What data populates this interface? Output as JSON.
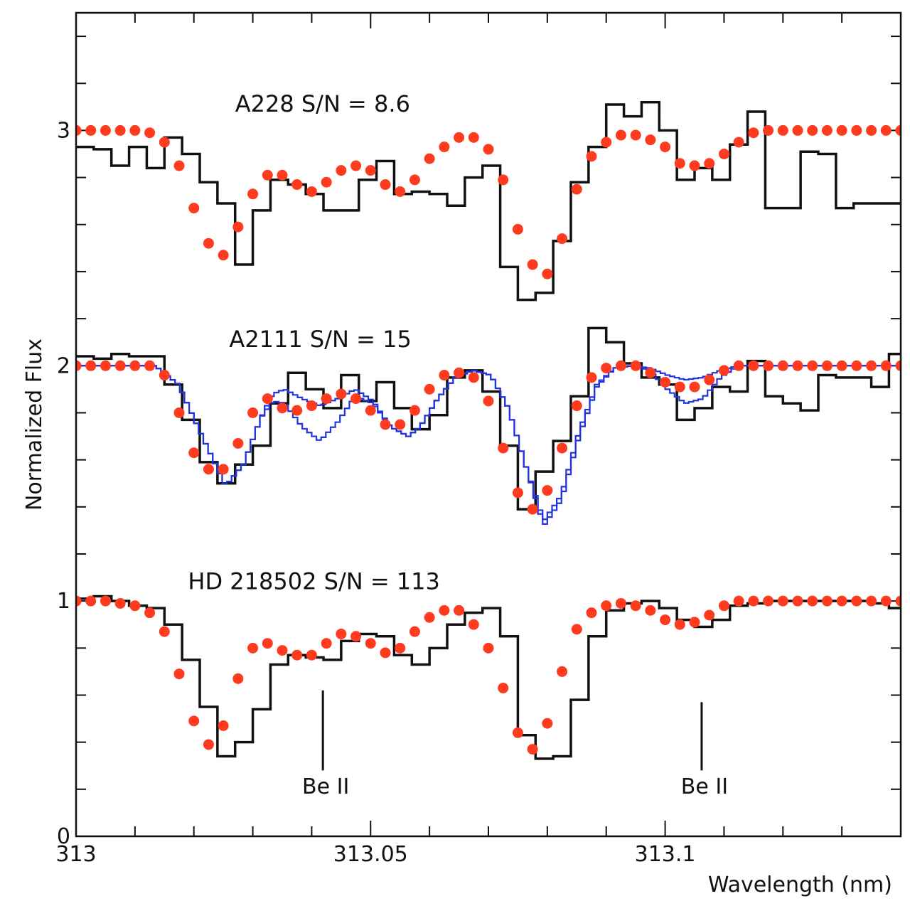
{
  "chart_data": {
    "type": "line",
    "xlabel": "Wavelength (nm)",
    "ylabel": "Normalized Flux",
    "xlim": [
      313.0,
      313.14
    ],
    "ylim": [
      0,
      3.5
    ],
    "x_ticks": [
      313,
      313.05,
      313.1
    ],
    "x_tick_labels": [
      "313",
      "313.05",
      "313.1"
    ],
    "x_minor_step": 0.01,
    "y_ticks": [
      0,
      1,
      2,
      3
    ],
    "y_tick_labels": [
      "0",
      "1",
      "2",
      "3"
    ],
    "y_minor_step": 0.2,
    "colors": {
      "observed": "#111111",
      "model_dots": "#ff3b1f",
      "model_blue": "#2233dd"
    },
    "panels": [
      {
        "label": "A228 S/N = 8.6",
        "label_pos": [
          313.027,
          3.08
        ],
        "observed_step": {
          "x": [
            313.0,
            313.003,
            313.006,
            313.009,
            313.012,
            313.015,
            313.018,
            313.021,
            313.024,
            313.027,
            313.03,
            313.033,
            313.036,
            313.039,
            313.042,
            313.045,
            313.048,
            313.051,
            313.054,
            313.057,
            313.06,
            313.063,
            313.066,
            313.069,
            313.072,
            313.075,
            313.078,
            313.081,
            313.084,
            313.087,
            313.09,
            313.093,
            313.096,
            313.099,
            313.102,
            313.105,
            313.108,
            313.111,
            313.114,
            313.117,
            313.12,
            313.123,
            313.126,
            313.129,
            313.132,
            313.135,
            313.138
          ],
          "y": [
            2.93,
            2.92,
            2.85,
            2.93,
            2.84,
            2.97,
            2.9,
            2.78,
            2.69,
            2.43,
            2.66,
            2.79,
            2.77,
            2.73,
            2.66,
            2.66,
            2.79,
            2.87,
            2.73,
            2.74,
            2.73,
            2.68,
            2.8,
            2.85,
            2.42,
            2.28,
            2.31,
            2.53,
            2.78,
            2.93,
            3.11,
            3.06,
            3.12,
            3.0,
            2.79,
            2.84,
            2.79,
            2.94,
            3.08,
            2.67,
            2.67,
            2.91,
            2.9,
            2.67,
            2.69,
            2.69,
            2.69
          ]
        },
        "model_dots": {
          "x": [
            313.0,
            313.0025,
            313.005,
            313.0075,
            313.01,
            313.0125,
            313.015,
            313.0175,
            313.02,
            313.0225,
            313.025,
            313.0275,
            313.03,
            313.0325,
            313.035,
            313.0375,
            313.04,
            313.0425,
            313.045,
            313.0475,
            313.05,
            313.0525,
            313.055,
            313.0575,
            313.06,
            313.0625,
            313.065,
            313.0675,
            313.07,
            313.0725,
            313.075,
            313.0775,
            313.08,
            313.0825,
            313.085,
            313.0875,
            313.09,
            313.0925,
            313.095,
            313.0975,
            313.1,
            313.1025,
            313.105,
            313.1075,
            313.11,
            313.1125,
            313.115,
            313.1175,
            313.12,
            313.1225,
            313.125,
            313.1275,
            313.13,
            313.1325,
            313.135,
            313.1375,
            313.14
          ],
          "y": [
            3.0,
            3.0,
            3.0,
            3.0,
            3.0,
            2.99,
            2.95,
            2.85,
            2.67,
            2.52,
            2.47,
            2.59,
            2.73,
            2.81,
            2.81,
            2.77,
            2.74,
            2.78,
            2.83,
            2.85,
            2.83,
            2.77,
            2.74,
            2.79,
            2.88,
            2.93,
            2.97,
            2.97,
            2.92,
            2.79,
            2.58,
            2.43,
            2.39,
            2.54,
            2.75,
            2.89,
            2.95,
            2.98,
            2.98,
            2.96,
            2.93,
            2.86,
            2.85,
            2.86,
            2.9,
            2.95,
            2.99,
            3.0,
            3.0,
            3.0,
            3.0,
            3.0,
            3.0,
            3.0,
            3.0,
            3.0,
            3.0
          ]
        }
      },
      {
        "label": "A2111 S/N = 15",
        "label_pos": [
          313.026,
          2.08
        ],
        "observed_step": {
          "x": [
            313.0,
            313.003,
            313.006,
            313.009,
            313.012,
            313.015,
            313.018,
            313.021,
            313.024,
            313.027,
            313.03,
            313.033,
            313.036,
            313.039,
            313.042,
            313.045,
            313.048,
            313.051,
            313.054,
            313.057,
            313.06,
            313.063,
            313.066,
            313.069,
            313.072,
            313.075,
            313.078,
            313.081,
            313.084,
            313.087,
            313.09,
            313.093,
            313.096,
            313.099,
            313.102,
            313.105,
            313.108,
            313.111,
            313.114,
            313.117,
            313.12,
            313.123,
            313.126,
            313.129,
            313.132,
            313.135,
            313.138
          ],
          "y": [
            2.04,
            2.03,
            2.05,
            2.04,
            2.04,
            1.92,
            1.77,
            1.59,
            1.5,
            1.58,
            1.66,
            1.84,
            1.97,
            1.9,
            1.82,
            1.96,
            1.85,
            1.93,
            1.82,
            1.73,
            1.79,
            1.95,
            1.98,
            1.89,
            1.66,
            1.39,
            1.55,
            1.68,
            1.87,
            2.16,
            2.1,
            2.01,
            1.95,
            1.92,
            1.77,
            1.82,
            1.91,
            1.89,
            2.02,
            1.87,
            1.84,
            1.81,
            1.96,
            1.95,
            1.95,
            1.91,
            2.05
          ]
        },
        "model_dots": {
          "x": [
            313.0,
            313.0025,
            313.005,
            313.0075,
            313.01,
            313.0125,
            313.015,
            313.0175,
            313.02,
            313.0225,
            313.025,
            313.0275,
            313.03,
            313.0325,
            313.035,
            313.0375,
            313.04,
            313.0425,
            313.045,
            313.0475,
            313.05,
            313.0525,
            313.055,
            313.0575,
            313.06,
            313.0625,
            313.065,
            313.0675,
            313.07,
            313.0725,
            313.075,
            313.0775,
            313.08,
            313.0825,
            313.085,
            313.0875,
            313.09,
            313.0925,
            313.095,
            313.0975,
            313.1,
            313.1025,
            313.105,
            313.1075,
            313.11,
            313.1125,
            313.115,
            313.1175,
            313.12,
            313.1225,
            313.125,
            313.1275,
            313.13,
            313.1325,
            313.135,
            313.1375,
            313.14
          ],
          "y": [
            2.0,
            2.0,
            2.0,
            2.0,
            2.0,
            2.0,
            1.96,
            1.8,
            1.63,
            1.56,
            1.56,
            1.67,
            1.8,
            1.86,
            1.82,
            1.81,
            1.83,
            1.86,
            1.88,
            1.86,
            1.81,
            1.75,
            1.75,
            1.81,
            1.9,
            1.96,
            1.97,
            1.95,
            1.85,
            1.65,
            1.46,
            1.39,
            1.47,
            1.65,
            1.83,
            1.95,
            1.99,
            2.0,
            2.0,
            1.97,
            1.93,
            1.91,
            1.91,
            1.94,
            1.98,
            2.0,
            2.0,
            2.0,
            2.0,
            2.0,
            2.0,
            2.0,
            2.0,
            2.0,
            2.0,
            2.0,
            2.0
          ]
        },
        "model_blue": [
          {
            "x": [
              313.0,
              313.013,
              313.017,
              313.021,
              313.025,
              313.028,
              313.031,
              313.033,
              313.035,
              313.038,
              313.041,
              313.044,
              313.047,
              313.05,
              313.053,
              313.056,
              313.058,
              313.061,
              313.064,
              313.067,
              313.07,
              313.073,
              313.076,
              313.079,
              313.082,
              313.085,
              313.088,
              313.091,
              313.094,
              313.097,
              313.1,
              313.103,
              313.106,
              313.109,
              313.112,
              313.115,
              313.14
            ],
            "y": [
              2.0,
              2.0,
              1.92,
              1.7,
              1.49,
              1.58,
              1.78,
              1.88,
              1.9,
              1.86,
              1.83,
              1.86,
              1.9,
              1.85,
              1.74,
              1.7,
              1.74,
              1.86,
              1.95,
              1.98,
              1.96,
              1.82,
              1.57,
              1.34,
              1.45,
              1.72,
              1.92,
              1.99,
              2.0,
              1.99,
              1.96,
              1.94,
              1.95,
              1.98,
              2.0,
              2.0,
              2.0
            ]
          },
          {
            "x": [
              313.0,
              313.013,
              313.017,
              313.021,
              313.025,
              313.028,
              313.031,
              313.033,
              313.035,
              313.038,
              313.041,
              313.044,
              313.047,
              313.05,
              313.053,
              313.056,
              313.058,
              313.061,
              313.064,
              313.067,
              313.07,
              313.073,
              313.076,
              313.079,
              313.082,
              313.085,
              313.088,
              313.091,
              313.094,
              313.097,
              313.1,
              313.103,
              313.106,
              313.109,
              313.112,
              313.115,
              313.14
            ],
            "y": [
              2.0,
              2.0,
              1.92,
              1.7,
              1.49,
              1.58,
              1.78,
              1.85,
              1.84,
              1.74,
              1.68,
              1.76,
              1.87,
              1.84,
              1.74,
              1.7,
              1.74,
              1.86,
              1.95,
              1.98,
              1.96,
              1.82,
              1.57,
              1.32,
              1.43,
              1.7,
              1.91,
              1.99,
              2.0,
              1.98,
              1.9,
              1.84,
              1.86,
              1.95,
              2.0,
              2.0,
              2.0
            ]
          }
        ]
      },
      {
        "label": "HD 218502 S/N = 113",
        "label_pos": [
          313.019,
          1.05
        ],
        "observed_step": {
          "x": [
            313.0,
            313.003,
            313.006,
            313.009,
            313.012,
            313.015,
            313.018,
            313.021,
            313.024,
            313.027,
            313.03,
            313.033,
            313.036,
            313.039,
            313.042,
            313.045,
            313.048,
            313.051,
            313.054,
            313.057,
            313.06,
            313.063,
            313.066,
            313.069,
            313.072,
            313.075,
            313.078,
            313.081,
            313.084,
            313.087,
            313.09,
            313.093,
            313.096,
            313.099,
            313.102,
            313.105,
            313.108,
            313.111,
            313.114,
            313.117,
            313.12,
            313.123,
            313.126,
            313.129,
            313.132,
            313.135,
            313.138
          ],
          "y": [
            1.01,
            1.02,
            1.0,
            0.98,
            0.97,
            0.9,
            0.75,
            0.55,
            0.34,
            0.4,
            0.54,
            0.73,
            0.77,
            0.76,
            0.75,
            0.83,
            0.86,
            0.85,
            0.77,
            0.73,
            0.8,
            0.9,
            0.95,
            0.97,
            0.85,
            0.43,
            0.33,
            0.34,
            0.58,
            0.85,
            0.96,
            0.99,
            1.0,
            0.97,
            0.92,
            0.89,
            0.92,
            0.98,
            0.99,
            1.0,
            1.0,
            1.0,
            1.0,
            1.0,
            1.0,
            0.99,
            0.97
          ]
        },
        "model_dots": {
          "x": [
            313.0,
            313.0025,
            313.005,
            313.0075,
            313.01,
            313.0125,
            313.015,
            313.0175,
            313.02,
            313.0225,
            313.025,
            313.0275,
            313.03,
            313.0325,
            313.035,
            313.0375,
            313.04,
            313.0425,
            313.045,
            313.0475,
            313.05,
            313.0525,
            313.055,
            313.0575,
            313.06,
            313.0625,
            313.065,
            313.0675,
            313.07,
            313.0725,
            313.075,
            313.0775,
            313.08,
            313.0825,
            313.085,
            313.0875,
            313.09,
            313.0925,
            313.095,
            313.0975,
            313.1,
            313.1025,
            313.105,
            313.1075,
            313.11,
            313.1125,
            313.115,
            313.1175,
            313.12,
            313.1225,
            313.125,
            313.1275,
            313.13,
            313.1325,
            313.135,
            313.1375,
            313.14
          ],
          "y": [
            1.0,
            1.0,
            1.0,
            0.99,
            0.98,
            0.95,
            0.87,
            0.69,
            0.49,
            0.39,
            0.47,
            0.67,
            0.8,
            0.82,
            0.79,
            0.77,
            0.77,
            0.82,
            0.86,
            0.85,
            0.82,
            0.78,
            0.8,
            0.87,
            0.93,
            0.96,
            0.96,
            0.9,
            0.8,
            0.63,
            0.44,
            0.37,
            0.48,
            0.7,
            0.88,
            0.95,
            0.98,
            0.99,
            0.98,
            0.96,
            0.92,
            0.9,
            0.91,
            0.94,
            0.98,
            1.0,
            1.0,
            1.0,
            1.0,
            1.0,
            1.0,
            1.0,
            1.0,
            1.0,
            1.0,
            1.0,
            1.0
          ]
        }
      }
    ],
    "annotations": [
      {
        "text": "Be II",
        "x": 313.0419,
        "line_y": [
          0.28,
          0.62
        ]
      },
      {
        "text": "Be II",
        "x": 313.1062,
        "line_y": [
          0.28,
          0.57
        ]
      }
    ]
  }
}
